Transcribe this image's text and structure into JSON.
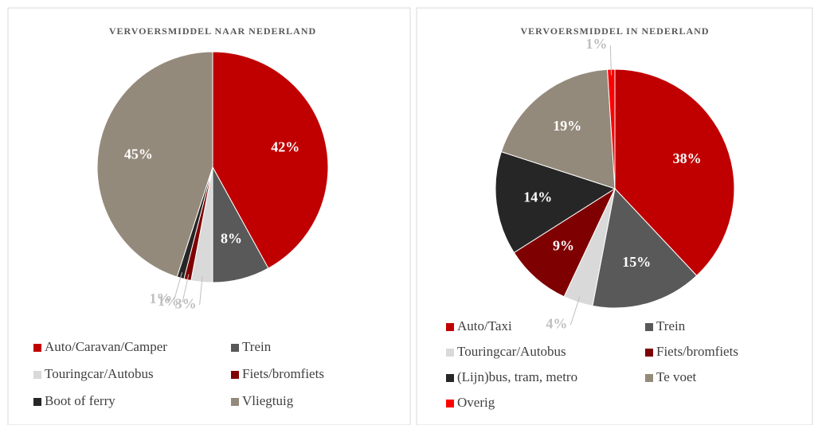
{
  "chart_data": [
    {
      "type": "pie",
      "title": "VERVOERSMIDDEL NAAR NEDERLAND",
      "categories": [
        "Auto/Caravan/Camper",
        "Trein",
        "Touringcar/Autobus",
        "Fiets/bromfiets",
        "Boot of ferry",
        "Vliegtuig"
      ],
      "values": [
        42,
        8,
        3,
        1,
        1,
        45
      ],
      "value_labels": [
        "42%",
        "8%",
        "3%",
        "1%",
        "1%",
        "45%"
      ],
      "colors": [
        "#c00000",
        "#595959",
        "#d9d9d9",
        "#7f0000",
        "#262626",
        "#948a7b"
      ]
    },
    {
      "type": "pie",
      "title": "VERVOERSMIDDEL IN NEDERLAND",
      "categories": [
        "Auto/Taxi",
        "Trein",
        "Touringcar/Autobus",
        "Fiets/bromfiets",
        "(Lijn)bus, tram, metro",
        "Te voet",
        "Overig"
      ],
      "values": [
        38,
        15,
        4,
        9,
        14,
        19,
        1
      ],
      "value_labels": [
        "38%",
        "15%",
        "4%",
        "9%",
        "14%",
        "19%",
        "1%"
      ],
      "colors": [
        "#c00000",
        "#595959",
        "#d9d9d9",
        "#7f0000",
        "#262626",
        "#948a7b",
        "#ff0000"
      ]
    }
  ]
}
